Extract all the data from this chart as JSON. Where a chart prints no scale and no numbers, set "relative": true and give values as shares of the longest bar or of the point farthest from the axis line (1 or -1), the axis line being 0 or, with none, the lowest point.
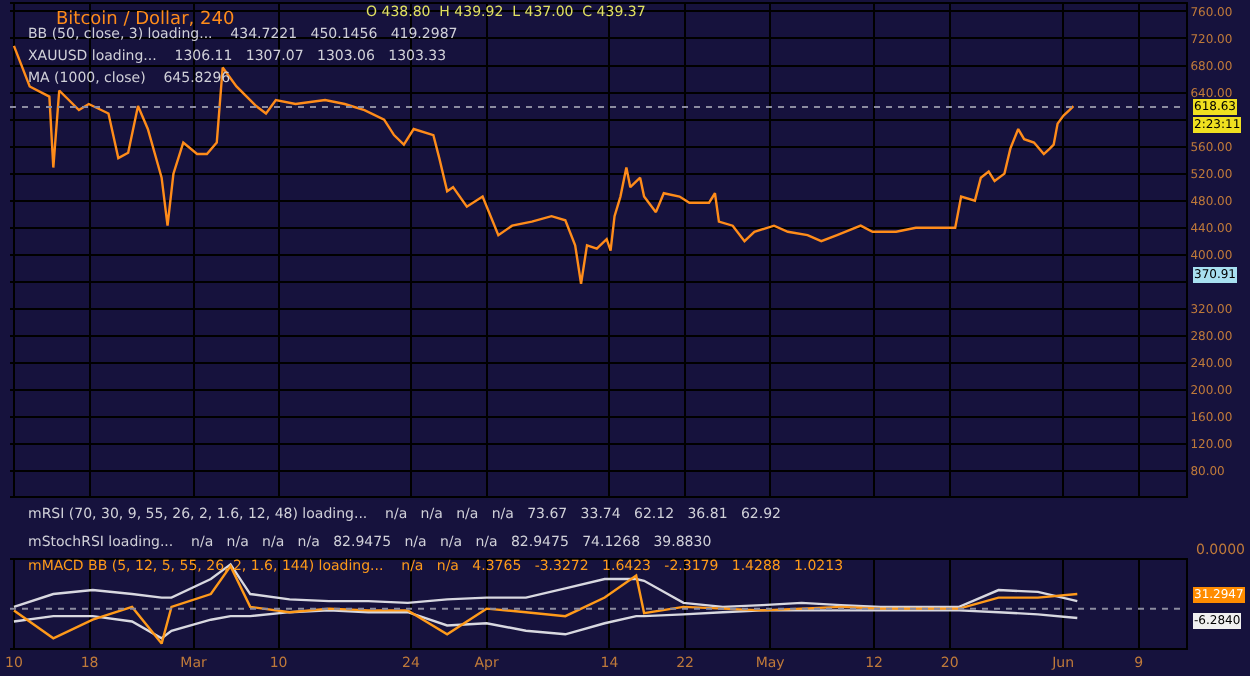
{
  "chart_data": [
    {
      "type": "line",
      "title": "Bitcoin / Dollar, 240",
      "annotations": [
        "O 438.80  H 439.92  L 437.00  C 439.37",
        "BB (50, close, 3) loading...    434.7221   450.1456   419.2987",
        "XAUUSD loading...    1306.11   1307.07   1303.06   1303.33",
        "MA (1000, close)    645.8296",
        "2:23:11",
        "370.91"
      ],
      "x": [
        "--02-10T00:00",
        "--02-11T16:00",
        "--02-13T18:00",
        "--02-14T04:00",
        "--02-14T19:00",
        "--02-16T21:00",
        "--02-17T22:00",
        "--02-20T00:00",
        "--02-21T01:00",
        "--02-22T02:00",
        "--02-23T03:00",
        "--02-24T04:00",
        "--02-25T15:00",
        "--02-26T06:00",
        "--02-26T21:00",
        "--02-27T22:00",
        "--03-01T09:00",
        "--03-02T10:00",
        "--03-03T11:00",
        "--03-04T02:00",
        "--03-05T13:00",
        "--03-07T15:00",
        "--03-08T16:00",
        "--03-09T17:00",
        "--03-11T19:00",
        "--03-14T22:00",
        "--03-17T00:00",
        "--03-19T02:00",
        "--03-21T04:00",
        "--03-22T05:00",
        "--03-23T06:00",
        "--03-24T07:00",
        "--03-26T09:00",
        "--03-27T00:00",
        "--03-27T20:00",
        "--03-28T11:00",
        "--03-29T22:00",
        "--03-31T14:00",
        "--04-02T06:00",
        "--04-03T17:00",
        "--04-05T19:00",
        "--04-07T21:00",
        "--04-09T08:00",
        "--04-10T09:00",
        "--04-11T00:00",
        "--04-11T15:00",
        "--04-12T16:00",
        "--04-13T17:00",
        "--04-14T03:00",
        "--04-14T13:00",
        "--04-15T04:00",
        "--04-15T19:00",
        "--04-16T05:00",
        "--04-17T06:00",
        "--04-17T16:00",
        "--04-18T22:00",
        "--04-19T18:00",
        "--04-21T10:00",
        "--04-22T11:00",
        "--04-24T13:00",
        "--04-25T04:00",
        "--04-25T14:00",
        "--04-27T01:00",
        "--04-28T07:00",
        "--04-29T08:00",
        "--05-01T10:00",
        "--05-02T21:00",
        "--05-04T23:00",
        "--05-06T10:00",
        "--05-08T02:00",
        "--05-10T14:00",
        "--05-11T20:00",
        "--05-14T08:00",
        "--05-16T10:00",
        "--05-18T12:00",
        "--05-20T14:00",
        "--05-21T05:00",
        "--05-22T16:00",
        "--05-23T07:00",
        "--05-24T03:00",
        "--05-24T18:00",
        "--05-25T19:00",
        "--05-26T10:00",
        "--05-27T06:00",
        "--05-27T21:00",
        "--05-28T22:00",
        "--05-29T23:00",
        "--05-30T14:00",
        "--05-31T00:00",
        "--05-31T10:00",
        "--06-01T01:00",
        "--06-01T16:00",
        "--06-02T02:00"
      ],
      "series": [
        {
          "color": "#ff8c1a",
          "values": [
            709,
            649,
            634,
            529,
            643,
            614,
            623,
            609,
            543,
            551,
            620,
            586,
            514,
            443,
            520,
            566,
            549,
            549,
            566,
            677,
            649,
            620,
            609,
            629,
            623,
            629,
            623,
            614,
            600,
            577,
            563,
            586,
            577,
            543,
            494,
            500,
            471,
            486,
            429,
            443,
            449,
            457,
            451,
            414,
            357,
            414,
            409,
            423,
            406,
            457,
            486,
            529,
            500,
            514,
            486,
            463,
            491,
            486,
            477,
            477,
            491,
            449,
            443,
            420,
            434,
            443,
            434,
            429,
            420,
            429,
            443,
            434,
            434,
            440,
            440,
            440,
            486,
            480,
            514,
            523,
            509,
            520,
            557,
            586,
            571,
            566,
            549,
            557,
            563,
            594,
            606,
            614,
            620
          ]
        }
      ],
      "xlim": [
        "--02-09T14:00",
        "--06-14T00:00"
      ],
      "xticks": [
        {
          "value": "--02-10",
          "label": "10"
        },
        {
          "value": "--02-18",
          "label": "18"
        },
        {
          "value": "--03-01",
          "label": "Mar"
        },
        {
          "value": "--03-10",
          "label": "10"
        },
        {
          "value": "--03-24",
          "label": "24"
        },
        {
          "value": "--04-01",
          "label": "Apr"
        },
        {
          "value": "--04-14",
          "label": "14"
        },
        {
          "value": "--04-22",
          "label": "22"
        },
        {
          "value": "--05-01",
          "label": "May"
        },
        {
          "value": "--05-12",
          "label": "12"
        },
        {
          "value": "--05-20",
          "label": "20"
        },
        {
          "value": "--06-01",
          "label": "Jun"
        },
        {
          "value": "--06-09",
          "label": "9"
        }
      ],
      "ylim": [
        43,
        771
      ],
      "yticks": [
        {
          "value": 80,
          "label": "80.00"
        },
        {
          "value": 120,
          "label": "120.00"
        },
        {
          "value": 160,
          "label": "160.00"
        },
        {
          "value": 200,
          "label": "200.00"
        },
        {
          "value": 240,
          "label": "240.00"
        },
        {
          "value": 280,
          "label": "280.00"
        },
        {
          "value": 320,
          "label": "320.00"
        },
        {
          "value": 360,
          "label": null
        },
        {
          "value": 400,
          "label": "400.00"
        },
        {
          "value": 440,
          "label": "440.00"
        },
        {
          "value": 480,
          "label": "480.00"
        },
        {
          "value": 520,
          "label": "520.00"
        },
        {
          "value": 560,
          "label": "560.00"
        },
        {
          "value": 600,
          "label": null
        },
        {
          "value": 640,
          "label": "640.00"
        },
        {
          "value": 680,
          "label": "680.00"
        },
        {
          "value": 720,
          "label": "720.00"
        },
        {
          "value": 760,
          "label": "760.00"
        }
      ],
      "ref_lines": [
        {
          "axis": "y",
          "value": 618.63,
          "label": "618.63",
          "color": "#8c8ca0",
          "line_style": "dotted"
        }
      ],
      "grid": true,
      "tick_labels": "y",
      "line_style": "solid"
    },
    {
      "type": "line",
      "relative": true,
      "annotations": [
        "mRSI (70, 30, 9, 55, 26, 2, 1.6, 12, 48) loading...    n/a   n/a   n/a   n/a   73.67   33.74   62.12   36.81   62.92",
        "mStochRSI loading...    n/a   n/a   n/a   n/a   82.9475   n/a   n/a   n/a   82.9475   74.1268   39.8830",
        "mMACD BB (5, 12, 5, 55, 26, 2, 1.6, 144) loading...    n/a   n/a   4.3765   -3.3272   1.6423   -2.3179   1.4288   1.0213",
        "0.0000",
        "31.2947",
        "-6.2840"
      ],
      "x": [
        "--02-10T00:00",
        "--02-14T04:00",
        "--02-18T08:00",
        "--02-22T12:00",
        "--02-25T15:00",
        "--02-26T16:00",
        "--03-02T20:00",
        "--03-04T22:00",
        "--03-07T00:00",
        "--03-11T04:00",
        "--03-15T08:00",
        "--03-19T12:00",
        "--03-23T16:00",
        "--03-27T20:00",
        "--04-01T00:00",
        "--04-05T04:00",
        "--04-09T08:00",
        "--04-13T12:00",
        "--04-16T20:00",
        "--04-17T16:00",
        "--04-21T20:00",
        "--04-26T00:00",
        "--04-30T04:00",
        "--05-04T08:00",
        "--05-08T12:00",
        "--05-12T16:00",
        "--05-16T20:00",
        "--05-21T00:00",
        "--05-25T04:00",
        "--05-29T08:00",
        "--06-02T12:00"
      ],
      "series": [
        {
          "color": "#d8d8e0",
          "values": [
            0.04,
            0.33,
            0.42,
            0.33,
            0.25,
            0.25,
            0.67,
            1,
            0.33,
            0.21,
            0.17,
            0.17,
            0.13,
            0.21,
            0.25,
            0.25,
            0.46,
            0.67,
            0.67,
            0.63,
            0.13,
            0.04,
            0.08,
            0.13,
            0.08,
            0.04,
            0.04,
            0.04,
            0.42,
            0.38,
            0.17
          ]
        },
        {
          "color": "#d8d8e0",
          "values": [
            -0.29,
            -0.17,
            -0.17,
            -0.29,
            -0.67,
            -0.5,
            -0.25,
            -0.17,
            -0.17,
            -0.08,
            -0.04,
            -0.08,
            -0.08,
            -0.38,
            -0.33,
            -0.5,
            -0.58,
            -0.33,
            -0.17,
            -0.17,
            -0.13,
            -0.08,
            -0.04,
            -0.04,
            -0.04,
            -0.04,
            -0.04,
            -0.04,
            -0.08,
            -0.13,
            -0.21
          ]
        },
        {
          "color": "#ff9a1a",
          "values": [
            -0.04,
            -0.67,
            -0.25,
            0.04,
            -0.79,
            0.04,
            0.33,
            0.96,
            0.04,
            -0.08,
            0,
            -0.04,
            -0.04,
            -0.58,
            0,
            -0.08,
            -0.17,
            0.25,
            0.75,
            -0.1,
            0.04,
            0,
            -0.04,
            0,
            0.04,
            0,
            0,
            0,
            0.25,
            0.25,
            0.33
          ]
        }
      ],
      "xlim": [
        "--02-09T14:00",
        "--06-14T00:00"
      ],
      "xticks": [
        {
          "value": "--02-10",
          "label": "10"
        },
        {
          "value": "--02-18",
          "label": "18"
        },
        {
          "value": "--03-01",
          "label": "Mar"
        },
        {
          "value": "--03-10",
          "label": "10"
        },
        {
          "value": "--03-24",
          "label": "24"
        },
        {
          "value": "--04-01",
          "label": "Apr"
        },
        {
          "value": "--04-14",
          "label": "14"
        },
        {
          "value": "--04-22",
          "label": "22"
        },
        {
          "value": "--05-01",
          "label": "May"
        },
        {
          "value": "--05-12",
          "label": "12"
        },
        {
          "value": "--05-20",
          "label": "20"
        },
        {
          "value": "--06-01",
          "label": "Jun"
        },
        {
          "value": "--06-09",
          "label": "9"
        }
      ],
      "ref_lines": [
        {
          "axis": "y",
          "value": 0,
          "color": "#8c8ca0",
          "line_style": "dotted"
        }
      ],
      "grid": "x",
      "tick_labels": "x",
      "line_style": "solid"
    }
  ]
}
